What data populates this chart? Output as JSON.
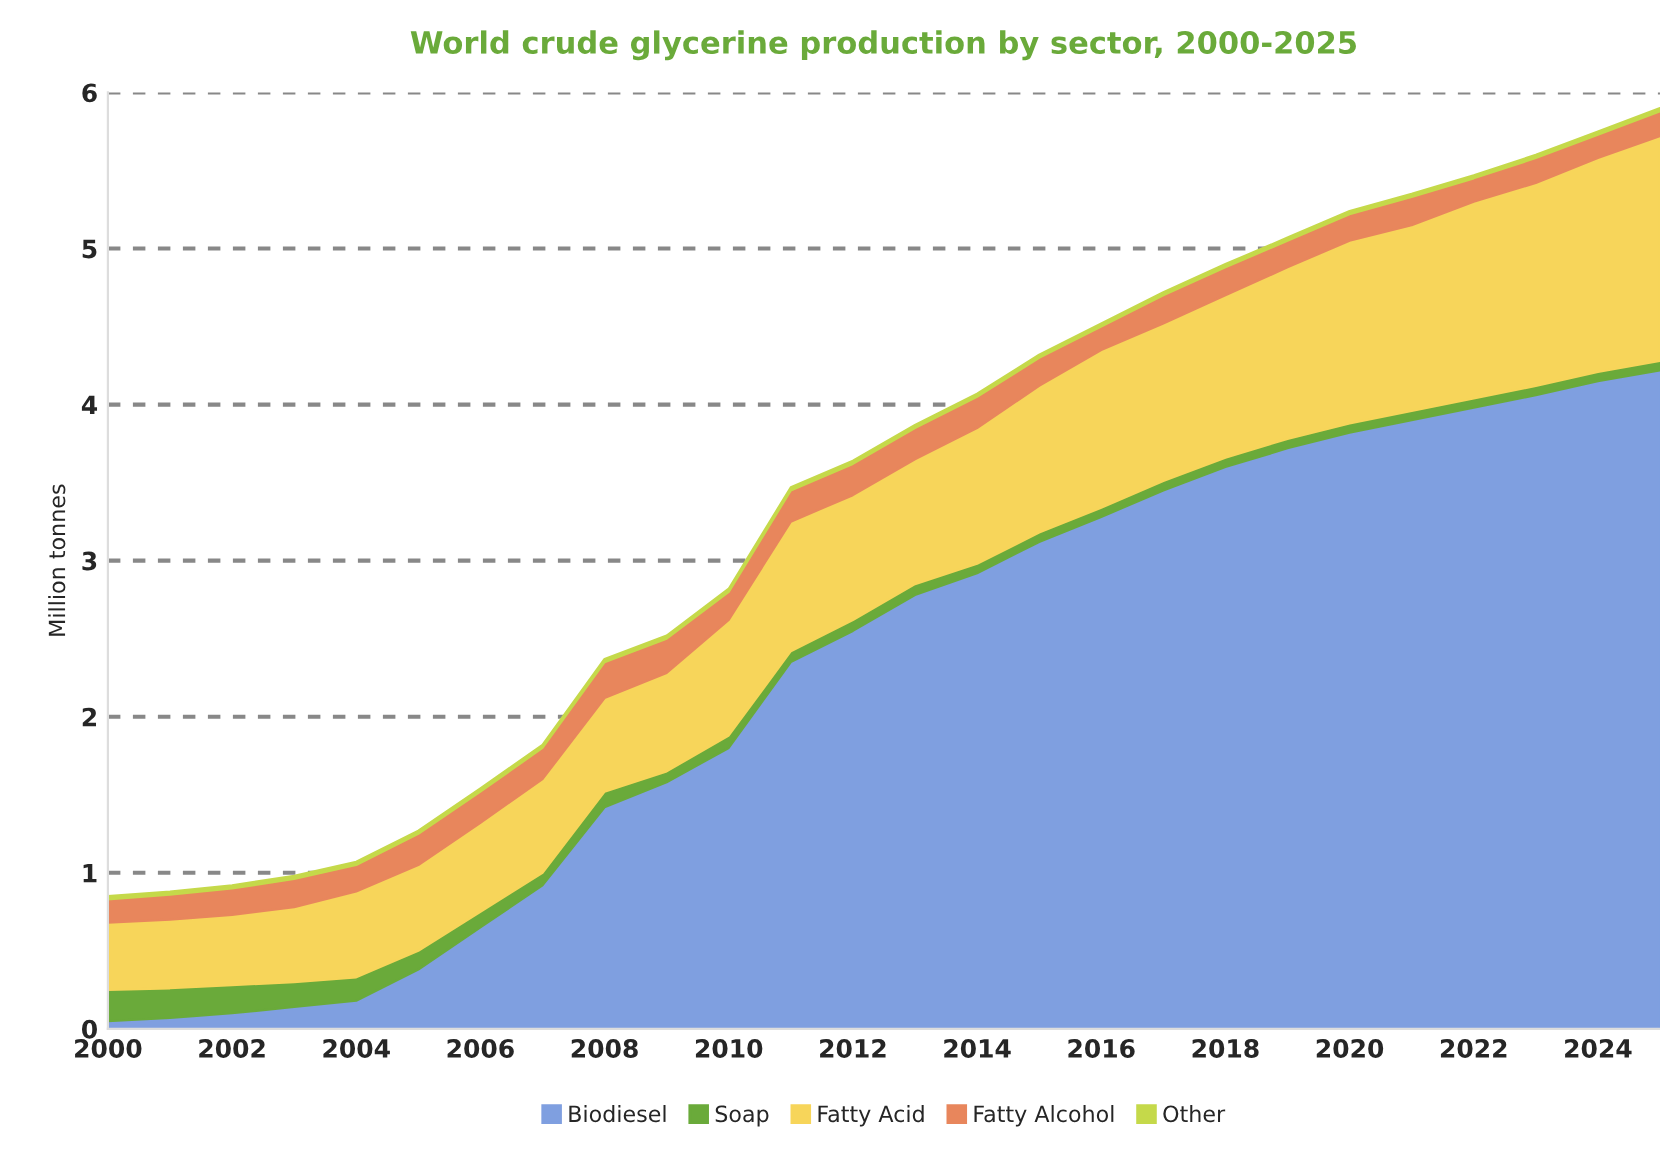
{
  "chart_data": {
    "type": "area",
    "stacked": true,
    "title": "World crude glycerine production by sector, 2000-2025",
    "ylabel": "Million tonnes",
    "x": [
      2000,
      2001,
      2002,
      2003,
      2004,
      2005,
      2006,
      2007,
      2008,
      2009,
      2010,
      2011,
      2012,
      2013,
      2014,
      2015,
      2016,
      2017,
      2018,
      2019,
      2020,
      2021,
      2022,
      2023,
      2024,
      2025
    ],
    "series": [
      {
        "name": "Biodiesel",
        "color": "#7f9fe0",
        "values": [
          0.05,
          0.07,
          0.1,
          0.14,
          0.18,
          0.38,
          0.65,
          0.92,
          1.42,
          1.58,
          1.8,
          2.35,
          2.55,
          2.78,
          2.92,
          3.12,
          3.28,
          3.45,
          3.6,
          3.72,
          3.82,
          3.9,
          3.98,
          4.06,
          4.15,
          4.22
        ]
      },
      {
        "name": "Soap",
        "color": "#6aaa3a",
        "values": [
          0.2,
          0.19,
          0.18,
          0.16,
          0.15,
          0.12,
          0.1,
          0.08,
          0.1,
          0.07,
          0.08,
          0.07,
          0.07,
          0.07,
          0.06,
          0.06,
          0.06,
          0.06,
          0.06,
          0.06,
          0.06,
          0.06,
          0.06,
          0.06,
          0.06,
          0.06
        ]
      },
      {
        "name": "Fatty Acid",
        "color": "#f7d55a",
        "values": [
          0.43,
          0.44,
          0.45,
          0.48,
          0.55,
          0.55,
          0.57,
          0.6,
          0.6,
          0.63,
          0.74,
          0.83,
          0.8,
          0.8,
          0.87,
          0.94,
          1.01,
          1.01,
          1.04,
          1.1,
          1.17,
          1.19,
          1.26,
          1.3,
          1.37,
          1.44
        ]
      },
      {
        "name": "Fatty Alcohol",
        "color": "#e8865c",
        "values": [
          0.15,
          0.16,
          0.17,
          0.18,
          0.17,
          0.2,
          0.2,
          0.2,
          0.23,
          0.22,
          0.18,
          0.2,
          0.2,
          0.2,
          0.2,
          0.18,
          0.15,
          0.18,
          0.18,
          0.17,
          0.17,
          0.18,
          0.15,
          0.16,
          0.15,
          0.16
        ]
      },
      {
        "name": "Other",
        "color": "#c5d94a",
        "values": [
          0.02,
          0.02,
          0.02,
          0.02,
          0.02,
          0.02,
          0.02,
          0.02,
          0.02,
          0.02,
          0.02,
          0.02,
          0.02,
          0.02,
          0.02,
          0.02,
          0.02,
          0.02,
          0.02,
          0.02,
          0.02,
          0.02,
          0.02,
          0.02,
          0.02,
          0.02
        ]
      }
    ],
    "xlim": [
      2000,
      2025
    ],
    "xticks": [
      2000,
      2002,
      2004,
      2006,
      2008,
      2010,
      2012,
      2014,
      2016,
      2018,
      2020,
      2022,
      2024
    ],
    "ylim": [
      0,
      6
    ],
    "yticks": [
      0,
      1,
      2,
      3,
      4,
      5,
      6
    ],
    "grid": "y",
    "legend": "bottom"
  }
}
